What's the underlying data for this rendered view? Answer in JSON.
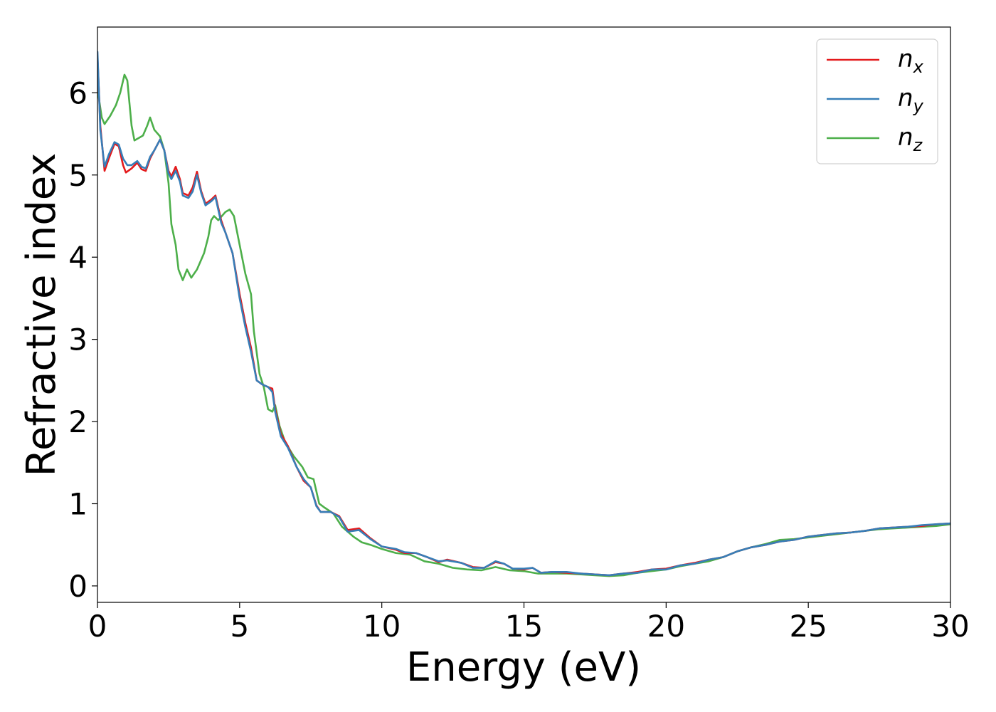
{
  "chart_data": {
    "type": "line",
    "xlabel": "Energy (eV)",
    "ylabel": "Refractive index",
    "xlim": [
      0,
      30
    ],
    "ylim": [
      -0.2,
      6.8
    ],
    "x_ticks": [
      0,
      5,
      10,
      15,
      20,
      25,
      30
    ],
    "y_ticks": [
      0,
      1,
      2,
      3,
      4,
      5,
      6
    ],
    "grid": false,
    "legend_position": "top-right",
    "series": [
      {
        "name": "n",
        "subscript": "x",
        "color": "#e41a1c",
        "points": [
          [
            0,
            6.45
          ],
          [
            0.1,
            5.6
          ],
          [
            0.25,
            5.05
          ],
          [
            0.4,
            5.2
          ],
          [
            0.6,
            5.38
          ],
          [
            0.75,
            5.35
          ],
          [
            0.9,
            5.12
          ],
          [
            1.0,
            5.03
          ],
          [
            1.2,
            5.08
          ],
          [
            1.4,
            5.15
          ],
          [
            1.55,
            5.07
          ],
          [
            1.7,
            5.05
          ],
          [
            1.85,
            5.2
          ],
          [
            2.0,
            5.3
          ],
          [
            2.2,
            5.43
          ],
          [
            2.35,
            5.3
          ],
          [
            2.5,
            5.05
          ],
          [
            2.6,
            4.98
          ],
          [
            2.75,
            5.1
          ],
          [
            2.9,
            4.95
          ],
          [
            3.0,
            4.78
          ],
          [
            3.2,
            4.75
          ],
          [
            3.35,
            4.85
          ],
          [
            3.5,
            5.04
          ],
          [
            3.65,
            4.8
          ],
          [
            3.8,
            4.65
          ],
          [
            4.0,
            4.7
          ],
          [
            4.15,
            4.75
          ],
          [
            4.35,
            4.45
          ],
          [
            4.5,
            4.3
          ],
          [
            4.75,
            4.05
          ],
          [
            5.0,
            3.55
          ],
          [
            5.2,
            3.2
          ],
          [
            5.4,
            2.9
          ],
          [
            5.6,
            2.5
          ],
          [
            5.8,
            2.45
          ],
          [
            6.0,
            2.42
          ],
          [
            6.15,
            2.4
          ],
          [
            6.25,
            2.15
          ],
          [
            6.45,
            1.85
          ],
          [
            6.7,
            1.7
          ],
          [
            7.0,
            1.45
          ],
          [
            7.25,
            1.28
          ],
          [
            7.5,
            1.2
          ],
          [
            7.7,
            0.98
          ],
          [
            7.85,
            0.9
          ],
          [
            8.2,
            0.9
          ],
          [
            8.5,
            0.85
          ],
          [
            8.8,
            0.68
          ],
          [
            9.2,
            0.7
          ],
          [
            9.6,
            0.58
          ],
          [
            10.0,
            0.48
          ],
          [
            10.5,
            0.44
          ],
          [
            10.8,
            0.4
          ],
          [
            11.2,
            0.4
          ],
          [
            11.6,
            0.35
          ],
          [
            12.0,
            0.29
          ],
          [
            12.3,
            0.32
          ],
          [
            12.8,
            0.28
          ],
          [
            13.2,
            0.23
          ],
          [
            13.6,
            0.22
          ],
          [
            14.0,
            0.29
          ],
          [
            14.3,
            0.27
          ],
          [
            14.6,
            0.21
          ],
          [
            15.0,
            0.2
          ],
          [
            15.3,
            0.22
          ],
          [
            15.6,
            0.16
          ],
          [
            16.0,
            0.17
          ],
          [
            16.5,
            0.16
          ],
          [
            17.0,
            0.15
          ],
          [
            17.5,
            0.14
          ],
          [
            18.0,
            0.13
          ],
          [
            18.5,
            0.15
          ],
          [
            19.0,
            0.17
          ],
          [
            19.5,
            0.2
          ],
          [
            20.0,
            0.21
          ],
          [
            20.5,
            0.25
          ],
          [
            21.0,
            0.28
          ],
          [
            21.5,
            0.32
          ],
          [
            22.0,
            0.35
          ],
          [
            22.5,
            0.42
          ],
          [
            23.0,
            0.47
          ],
          [
            23.5,
            0.5
          ],
          [
            24.0,
            0.54
          ],
          [
            24.5,
            0.56
          ],
          [
            25.0,
            0.6
          ],
          [
            25.5,
            0.62
          ],
          [
            26.0,
            0.64
          ],
          [
            26.5,
            0.65
          ],
          [
            27.0,
            0.67
          ],
          [
            27.5,
            0.7
          ],
          [
            28.0,
            0.71
          ],
          [
            28.5,
            0.72
          ],
          [
            29.0,
            0.73
          ],
          [
            29.5,
            0.75
          ],
          [
            30.0,
            0.76
          ]
        ]
      },
      {
        "name": "n",
        "subscript": "y",
        "color": "#377eb8",
        "points": [
          [
            0,
            6.5
          ],
          [
            0.1,
            5.55
          ],
          [
            0.25,
            5.1
          ],
          [
            0.4,
            5.25
          ],
          [
            0.6,
            5.4
          ],
          [
            0.75,
            5.37
          ],
          [
            0.9,
            5.2
          ],
          [
            1.05,
            5.12
          ],
          [
            1.2,
            5.12
          ],
          [
            1.4,
            5.17
          ],
          [
            1.55,
            5.1
          ],
          [
            1.7,
            5.08
          ],
          [
            1.85,
            5.22
          ],
          [
            2.0,
            5.3
          ],
          [
            2.2,
            5.43
          ],
          [
            2.35,
            5.3
          ],
          [
            2.5,
            5.02
          ],
          [
            2.6,
            4.95
          ],
          [
            2.75,
            5.05
          ],
          [
            2.9,
            4.92
          ],
          [
            3.0,
            4.75
          ],
          [
            3.2,
            4.72
          ],
          [
            3.35,
            4.8
          ],
          [
            3.5,
            5.0
          ],
          [
            3.65,
            4.78
          ],
          [
            3.8,
            4.63
          ],
          [
            4.0,
            4.68
          ],
          [
            4.15,
            4.73
          ],
          [
            4.35,
            4.42
          ],
          [
            4.5,
            4.3
          ],
          [
            4.75,
            4.05
          ],
          [
            5.0,
            3.5
          ],
          [
            5.2,
            3.15
          ],
          [
            5.4,
            2.85
          ],
          [
            5.6,
            2.5
          ],
          [
            5.8,
            2.45
          ],
          [
            6.0,
            2.42
          ],
          [
            6.15,
            2.36
          ],
          [
            6.25,
            2.12
          ],
          [
            6.45,
            1.82
          ],
          [
            6.7,
            1.68
          ],
          [
            7.0,
            1.45
          ],
          [
            7.25,
            1.3
          ],
          [
            7.5,
            1.2
          ],
          [
            7.7,
            0.97
          ],
          [
            7.85,
            0.9
          ],
          [
            8.2,
            0.9
          ],
          [
            8.5,
            0.84
          ],
          [
            8.8,
            0.66
          ],
          [
            9.2,
            0.68
          ],
          [
            9.6,
            0.57
          ],
          [
            10.0,
            0.48
          ],
          [
            10.5,
            0.45
          ],
          [
            10.8,
            0.41
          ],
          [
            11.2,
            0.4
          ],
          [
            11.6,
            0.35
          ],
          [
            12.0,
            0.3
          ],
          [
            12.3,
            0.31
          ],
          [
            12.8,
            0.28
          ],
          [
            13.2,
            0.22
          ],
          [
            13.6,
            0.22
          ],
          [
            14.0,
            0.3
          ],
          [
            14.3,
            0.27
          ],
          [
            14.6,
            0.21
          ],
          [
            15.0,
            0.21
          ],
          [
            15.3,
            0.22
          ],
          [
            15.6,
            0.16
          ],
          [
            16.0,
            0.17
          ],
          [
            16.5,
            0.17
          ],
          [
            17.0,
            0.15
          ],
          [
            17.5,
            0.14
          ],
          [
            18.0,
            0.13
          ],
          [
            18.5,
            0.15
          ],
          [
            19.0,
            0.16
          ],
          [
            19.5,
            0.2
          ],
          [
            20.0,
            0.2
          ],
          [
            20.5,
            0.25
          ],
          [
            21.0,
            0.27
          ],
          [
            21.5,
            0.32
          ],
          [
            22.0,
            0.35
          ],
          [
            22.5,
            0.42
          ],
          [
            23.0,
            0.47
          ],
          [
            23.5,
            0.5
          ],
          [
            24.0,
            0.54
          ],
          [
            24.5,
            0.56
          ],
          [
            25.0,
            0.6
          ],
          [
            25.5,
            0.62
          ],
          [
            26.0,
            0.64
          ],
          [
            26.5,
            0.65
          ],
          [
            27.0,
            0.67
          ],
          [
            27.5,
            0.7
          ],
          [
            28.0,
            0.71
          ],
          [
            28.5,
            0.72
          ],
          [
            29.0,
            0.74
          ],
          [
            29.5,
            0.75
          ],
          [
            30.0,
            0.76
          ]
        ]
      },
      {
        "name": "n",
        "subscript": "z",
        "color": "#4daf4a",
        "points": [
          [
            0,
            6.05
          ],
          [
            0.15,
            5.7
          ],
          [
            0.25,
            5.62
          ],
          [
            0.45,
            5.72
          ],
          [
            0.65,
            5.85
          ],
          [
            0.8,
            6.0
          ],
          [
            0.95,
            6.22
          ],
          [
            1.05,
            6.15
          ],
          [
            1.2,
            5.6
          ],
          [
            1.3,
            5.42
          ],
          [
            1.45,
            5.45
          ],
          [
            1.6,
            5.48
          ],
          [
            1.75,
            5.6
          ],
          [
            1.85,
            5.7
          ],
          [
            2.0,
            5.55
          ],
          [
            2.2,
            5.47
          ],
          [
            2.35,
            5.3
          ],
          [
            2.5,
            4.9
          ],
          [
            2.6,
            4.4
          ],
          [
            2.75,
            4.15
          ],
          [
            2.85,
            3.85
          ],
          [
            3.0,
            3.72
          ],
          [
            3.15,
            3.85
          ],
          [
            3.3,
            3.75
          ],
          [
            3.5,
            3.85
          ],
          [
            3.75,
            4.05
          ],
          [
            3.9,
            4.25
          ],
          [
            4.0,
            4.45
          ],
          [
            4.1,
            4.5
          ],
          [
            4.25,
            4.45
          ],
          [
            4.5,
            4.55
          ],
          [
            4.65,
            4.58
          ],
          [
            4.8,
            4.5
          ],
          [
            5.0,
            4.15
          ],
          [
            5.2,
            3.8
          ],
          [
            5.4,
            3.55
          ],
          [
            5.5,
            3.1
          ],
          [
            5.7,
            2.58
          ],
          [
            5.85,
            2.42
          ],
          [
            6.0,
            2.15
          ],
          [
            6.15,
            2.12
          ],
          [
            6.25,
            2.2
          ],
          [
            6.4,
            1.95
          ],
          [
            6.6,
            1.75
          ],
          [
            6.9,
            1.58
          ],
          [
            7.2,
            1.45
          ],
          [
            7.4,
            1.32
          ],
          [
            7.6,
            1.3
          ],
          [
            7.8,
            1.0
          ],
          [
            8.0,
            0.95
          ],
          [
            8.3,
            0.88
          ],
          [
            8.6,
            0.72
          ],
          [
            9.0,
            0.6
          ],
          [
            9.3,
            0.53
          ],
          [
            9.6,
            0.5
          ],
          [
            10.0,
            0.45
          ],
          [
            10.5,
            0.4
          ],
          [
            11.0,
            0.38
          ],
          [
            11.5,
            0.3
          ],
          [
            12.0,
            0.27
          ],
          [
            12.5,
            0.22
          ],
          [
            13.0,
            0.2
          ],
          [
            13.5,
            0.19
          ],
          [
            14.0,
            0.23
          ],
          [
            14.5,
            0.19
          ],
          [
            15.0,
            0.18
          ],
          [
            15.5,
            0.15
          ],
          [
            16.0,
            0.15
          ],
          [
            16.5,
            0.15
          ],
          [
            17.0,
            0.14
          ],
          [
            17.5,
            0.13
          ],
          [
            18.0,
            0.12
          ],
          [
            18.5,
            0.13
          ],
          [
            19.0,
            0.16
          ],
          [
            19.5,
            0.18
          ],
          [
            20.0,
            0.2
          ],
          [
            20.5,
            0.24
          ],
          [
            21.0,
            0.27
          ],
          [
            21.5,
            0.3
          ],
          [
            22.0,
            0.35
          ],
          [
            22.5,
            0.42
          ],
          [
            23.0,
            0.47
          ],
          [
            23.5,
            0.51
          ],
          [
            24.0,
            0.56
          ],
          [
            24.5,
            0.57
          ],
          [
            25.0,
            0.59
          ],
          [
            25.5,
            0.61
          ],
          [
            26.0,
            0.63
          ],
          [
            26.5,
            0.65
          ],
          [
            27.0,
            0.67
          ],
          [
            27.5,
            0.69
          ],
          [
            28.0,
            0.7
          ],
          [
            28.5,
            0.71
          ],
          [
            29.0,
            0.72
          ],
          [
            29.5,
            0.73
          ],
          [
            30.0,
            0.75
          ]
        ]
      }
    ]
  }
}
